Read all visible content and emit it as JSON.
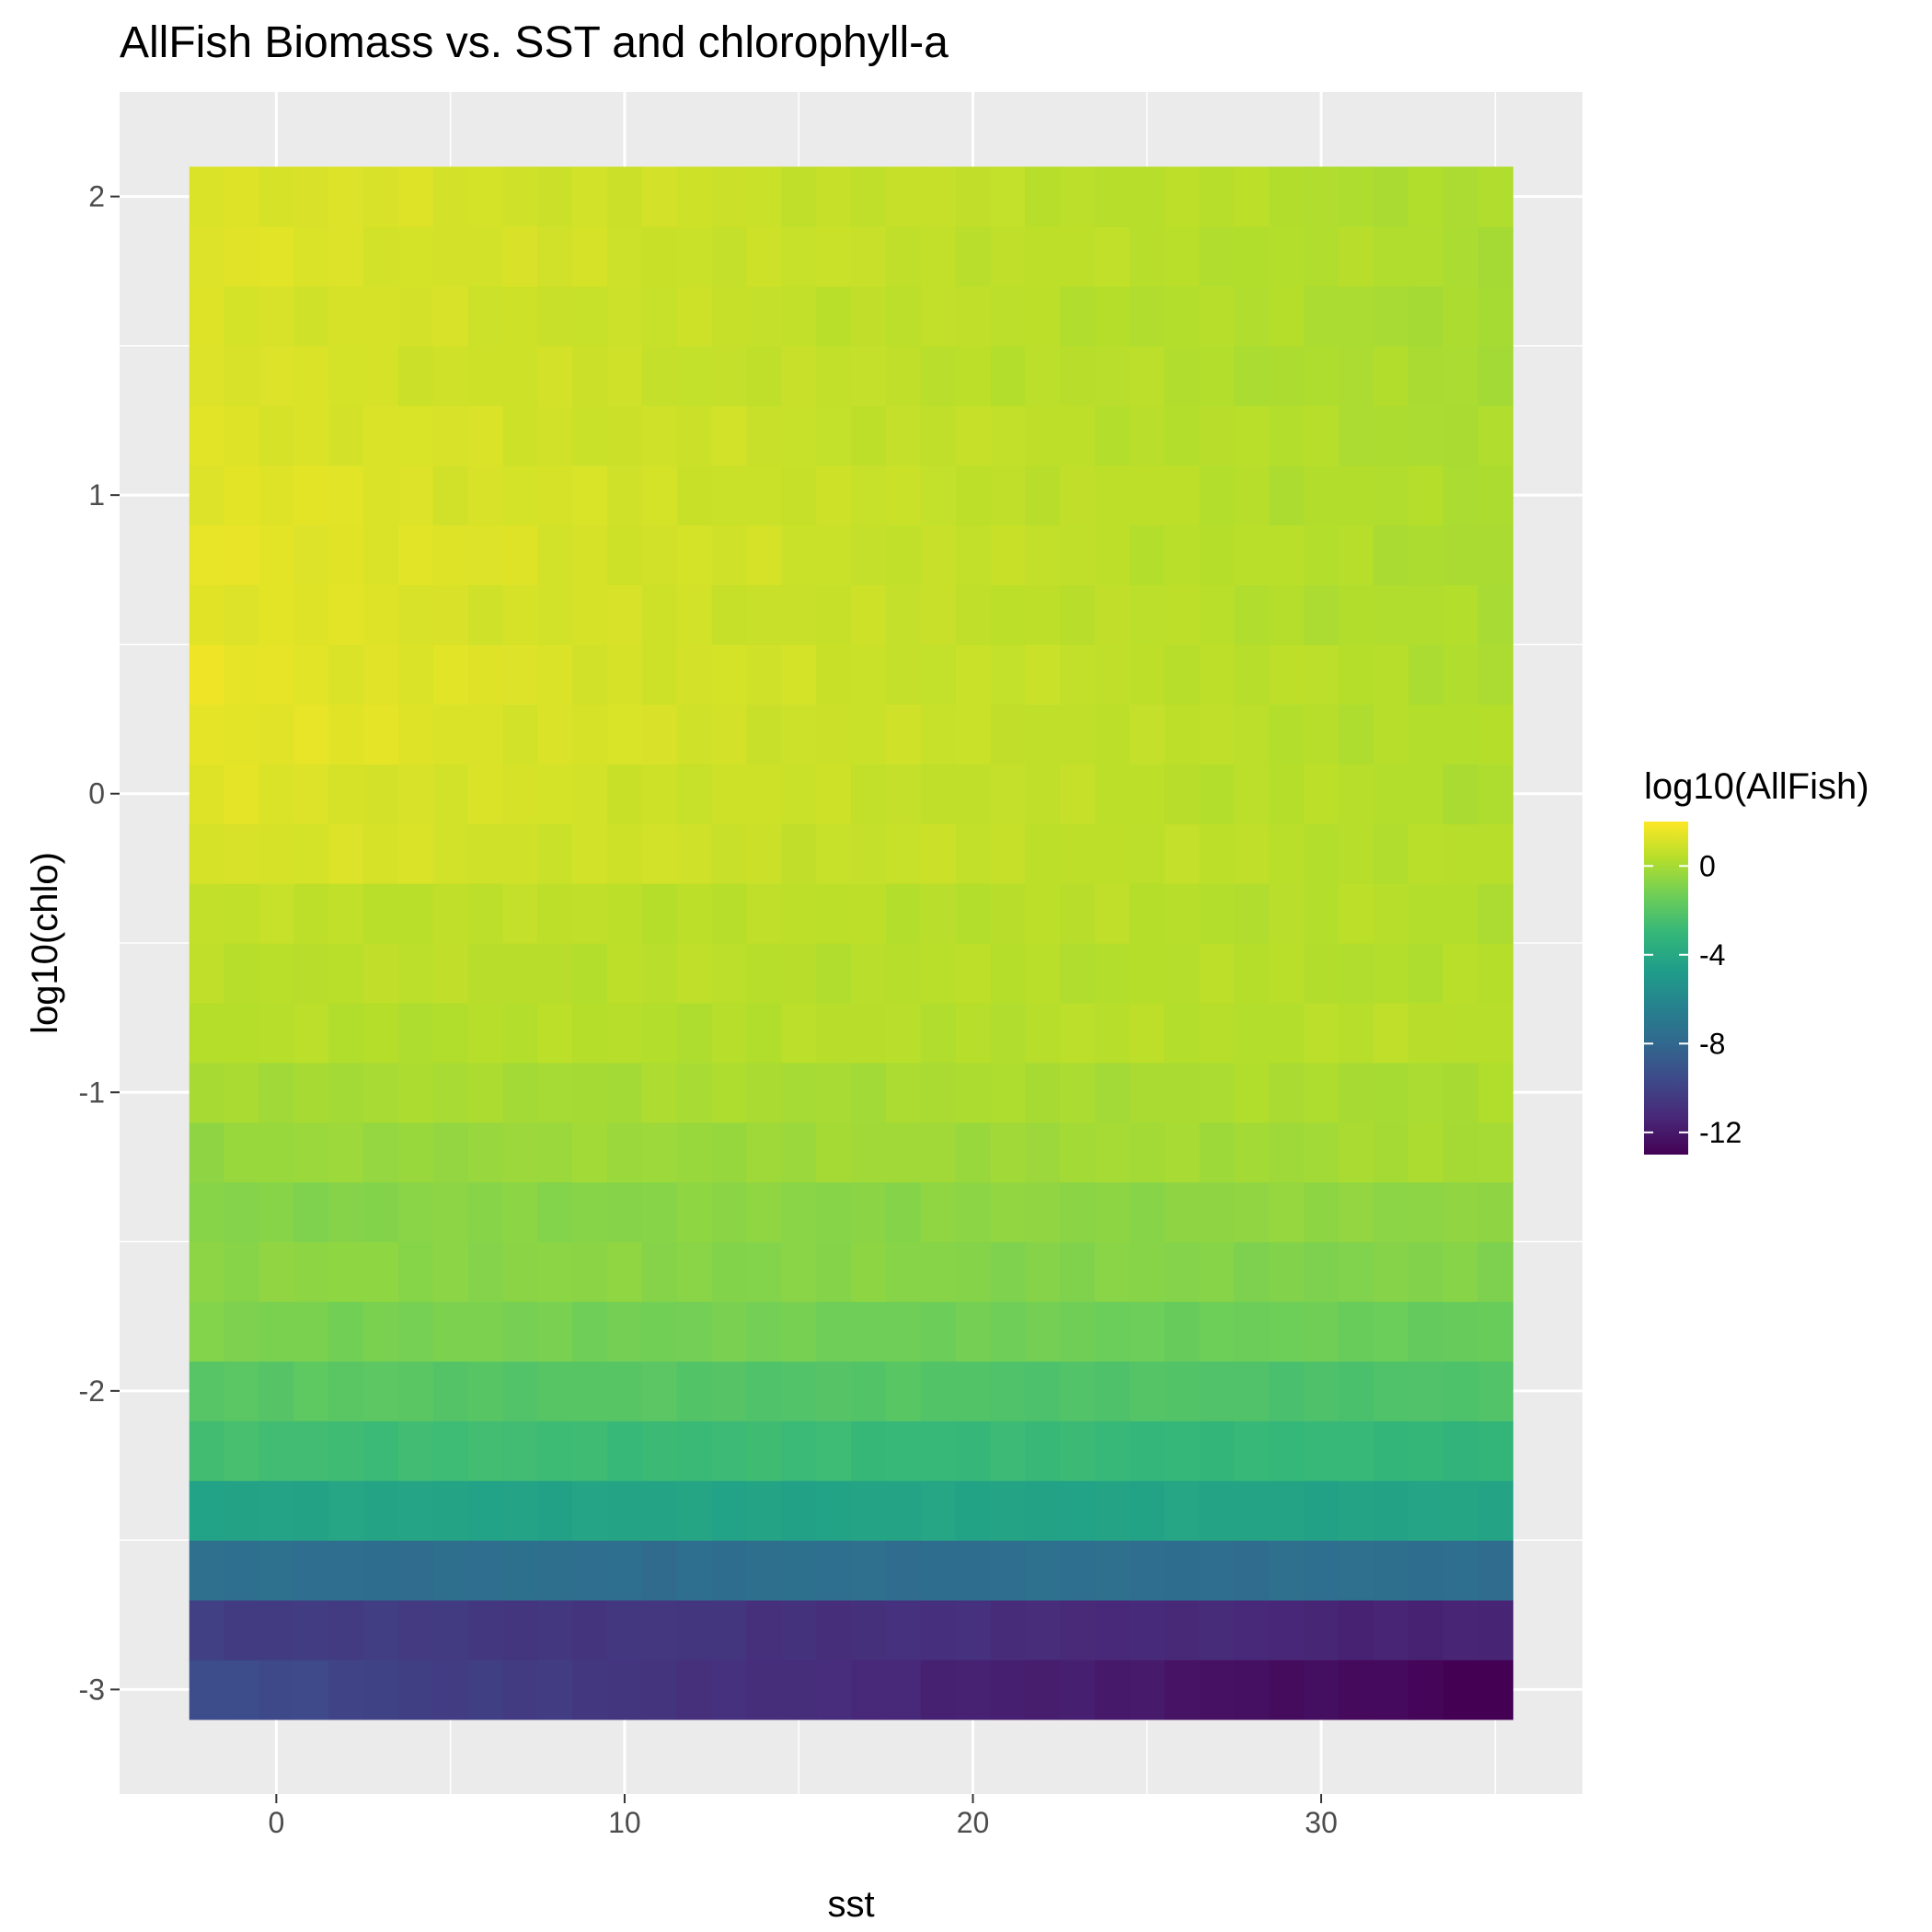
{
  "chart_data": {
    "type": "heatmap",
    "title": "AllFish Biomass vs. SST and chlorophyll-a",
    "xlabel": "sst",
    "ylabel": "log10(chlo)",
    "x_ticks": [
      0,
      10,
      20,
      30
    ],
    "y_ticks": [
      -3,
      -2,
      -1,
      0,
      1,
      2
    ],
    "xlim": [
      -4.5,
      37.5
    ],
    "ylim": [
      -3.35,
      2.35
    ],
    "grid": true,
    "legend_position": "right",
    "colorscale": "viridis",
    "legend": {
      "title": "log10(AllFish)",
      "ticks": [
        0,
        -4,
        -8,
        -12
      ],
      "range": [
        -13,
        2
      ]
    },
    "x_columns": {
      "count": 38,
      "start": -2,
      "step": 1
    },
    "rows": [
      {
        "y": -3.0,
        "left": -9.5,
        "right": -13.0
      },
      {
        "y": -2.8,
        "left": -10.2,
        "right": -11.6
      },
      {
        "y": -2.6,
        "left": -7.6,
        "right": -7.6
      },
      {
        "y": -2.4,
        "left": -4.3,
        "right": -4.3
      },
      {
        "y": -2.2,
        "left": -2.6,
        "right": -3.1
      },
      {
        "y": -2.0,
        "left": -1.9,
        "right": -2.3
      },
      {
        "y": -1.8,
        "left": -1.0,
        "right": -1.5
      },
      {
        "y": -1.6,
        "left": -0.6,
        "right": -0.9
      },
      {
        "y": -1.4,
        "left": -0.8,
        "right": -0.5
      },
      {
        "y": -1.2,
        "left": -0.4,
        "right": 0.0
      },
      {
        "y": -1.0,
        "left": 0.0,
        "right": 0.1
      },
      {
        "y": -0.8,
        "left": 0.3,
        "right": 0.4
      },
      {
        "y": -0.6,
        "left": 0.5,
        "right": 0.3
      },
      {
        "y": -0.4,
        "left": 0.6,
        "right": 0.3
      },
      {
        "y": -0.2,
        "left": 1.2,
        "right": 0.3
      },
      {
        "y": 0.0,
        "left": 1.3,
        "right": 0.2
      },
      {
        "y": 0.2,
        "left": 1.5,
        "right": 0.2
      },
      {
        "y": 0.4,
        "left": 1.5,
        "right": 0.2
      },
      {
        "y": 0.6,
        "left": 1.4,
        "right": 0.1
      },
      {
        "y": 0.8,
        "left": 1.5,
        "right": 0.1
      },
      {
        "y": 1.0,
        "left": 1.4,
        "right": 0.1
      },
      {
        "y": 1.2,
        "left": 1.3,
        "right": 0.1
      },
      {
        "y": 1.4,
        "left": 1.2,
        "right": 0.0
      },
      {
        "y": 1.6,
        "left": 1.2,
        "right": 0.0
      },
      {
        "y": 1.8,
        "left": 1.3,
        "right": 0.1
      },
      {
        "y": 2.0,
        "left": 1.3,
        "right": 0.1
      }
    ]
  }
}
